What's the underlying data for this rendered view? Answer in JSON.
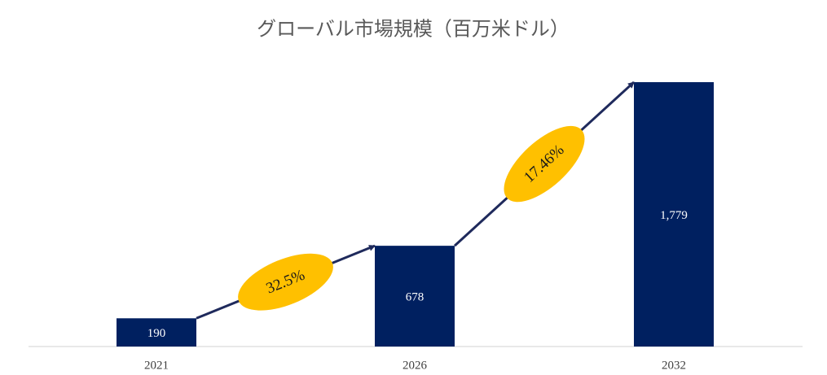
{
  "chart_data": {
    "type": "bar",
    "title": "グローバル市場規模（百万米ドル）",
    "categories": [
      "2021",
      "2026",
      "2032"
    ],
    "values": [
      190,
      678,
      1779
    ],
    "value_labels": [
      "190",
      "678",
      "1,779"
    ],
    "color": "#002060",
    "annotations": [
      "32.5%",
      "17.46%"
    ],
    "annotation_color": "#FFC000"
  }
}
